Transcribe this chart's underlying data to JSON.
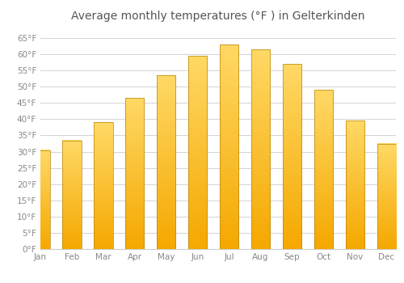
{
  "title": "Average monthly temperatures (°F ) in Gelterkinden",
  "months": [
    "Jan",
    "Feb",
    "Mar",
    "Apr",
    "May",
    "Jun",
    "Jul",
    "Aug",
    "Sep",
    "Oct",
    "Nov",
    "Dec"
  ],
  "values": [
    30.5,
    33.5,
    39.0,
    46.5,
    53.5,
    59.5,
    63.0,
    61.5,
    57.0,
    49.0,
    39.5,
    32.5
  ],
  "bar_color_bottom": "#F5A800",
  "bar_color_top": "#FFD966",
  "bar_edge_color": "#B8860B",
  "background_color": "#FFFFFF",
  "grid_color": "#CCCCCC",
  "text_color": "#888888",
  "title_color": "#555555",
  "ylim": [
    0,
    68
  ],
  "yticks": [
    0,
    5,
    10,
    15,
    20,
    25,
    30,
    35,
    40,
    45,
    50,
    55,
    60,
    65
  ],
  "title_fontsize": 10,
  "tick_fontsize": 7.5,
  "bar_width": 0.6
}
